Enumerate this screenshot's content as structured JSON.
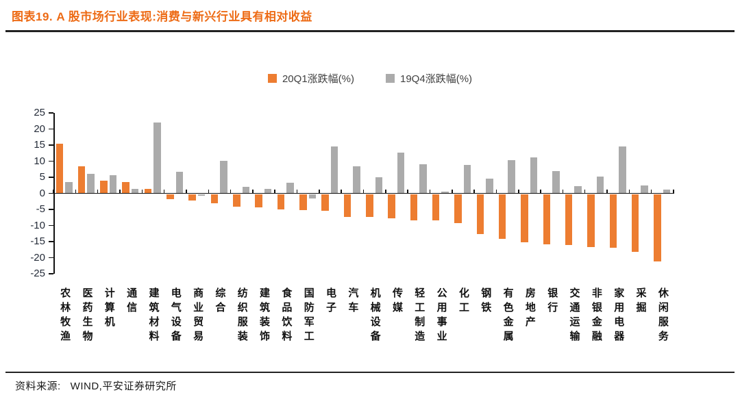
{
  "title": "图表19. A 股市场行业表现:消费与新兴行业具有相对收益",
  "legend": {
    "items": [
      {
        "label": "20Q1涨跌幅(%)",
        "color": "#ED7D31"
      },
      {
        "label": "19Q4涨跌幅(%)",
        "color": "#ABABAB"
      }
    ]
  },
  "footer": {
    "source_label": "资料来源:",
    "source_text": "WIND,平安证券研究所"
  },
  "colors": {
    "title_orange": "#ED6B15",
    "bar_orange": "#ED7D31",
    "bar_gray": "#ABABAB",
    "axis": "#111111"
  },
  "chart_data": {
    "type": "bar",
    "title": "A股市场行业表现:消费与新兴行业具有相对收益",
    "categories": [
      "农林牧渔",
      "医药生物",
      "计算机",
      "通信",
      "建筑材料",
      "电气设备",
      "商业贸易",
      "综合",
      "纺织服装",
      "建筑装饰",
      "食品饮料",
      "国防军工",
      "电子",
      "汽车",
      "机械设备",
      "传媒",
      "轻工制造",
      "公用事业",
      "化工",
      "钢铁",
      "有色金属",
      "房地产",
      "银行",
      "交通运输",
      "非银金融",
      "家用电器",
      "采掘",
      "休闲服务"
    ],
    "series": [
      {
        "name": "20Q1涨跌幅(%)",
        "color": "#ED7D31",
        "values": [
          15.5,
          8.3,
          3.9,
          3.5,
          1.4,
          -1.5,
          -1.9,
          -2.7,
          -3.9,
          -4.1,
          -4.6,
          -4.8,
          -5.0,
          -7.0,
          -7.1,
          -7.4,
          -8.0,
          -8.0,
          -9.0,
          -12.3,
          -13.9,
          -14.8,
          -15.5,
          -15.7,
          -16.3,
          -16.6,
          -17.8,
          -20.8
        ]
      },
      {
        "name": "19Q4涨跌幅(%)",
        "color": "#ABABAB",
        "values": [
          3.5,
          6.0,
          5.6,
          1.4,
          22.0,
          6.7,
          -0.5,
          10.2,
          2.0,
          1.4,
          3.3,
          -1.3,
          14.6,
          8.5,
          5.1,
          12.7,
          9.0,
          0.5,
          8.8,
          4.6,
          10.4,
          11.1,
          6.9,
          2.3,
          5.3,
          14.5,
          2.4,
          1.2
        ]
      }
    ],
    "ylim": [
      -25,
      25
    ],
    "yticks": [
      25,
      20,
      15,
      10,
      5,
      0,
      -5,
      -10,
      -15,
      -20,
      -25
    ],
    "xlabel": "",
    "ylabel": "",
    "grid": false,
    "legend_position": "top-center"
  }
}
